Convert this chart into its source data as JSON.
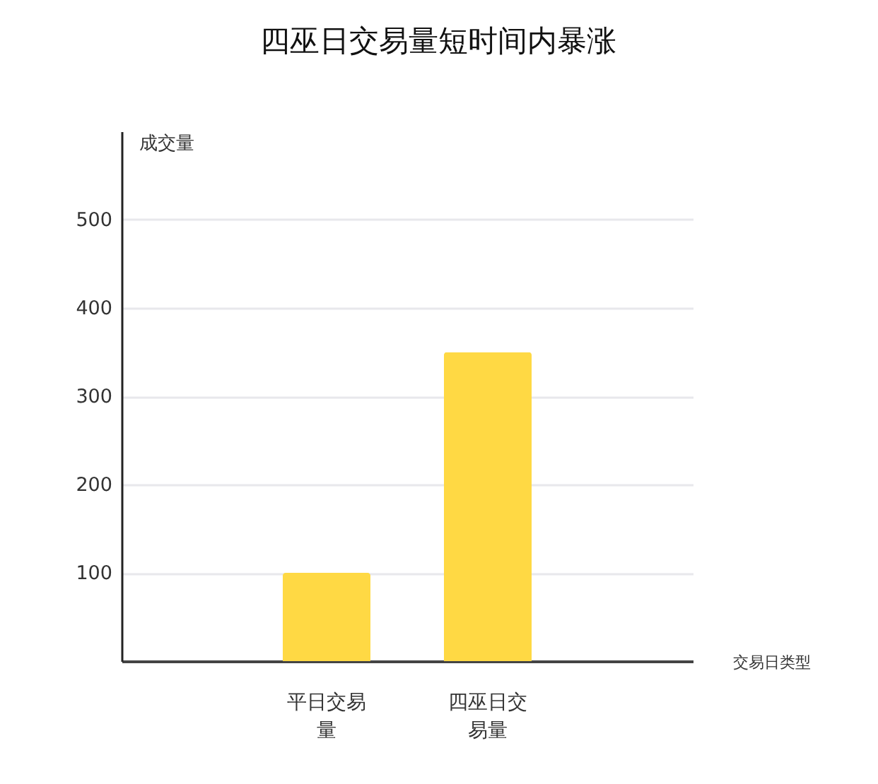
{
  "chart_data": {
    "type": "bar",
    "title": "四巫日交易量短时间内暴涨",
    "xlabel": "交易日类型",
    "ylabel": "成交量",
    "categories": [
      "平日交易量",
      "四巫日交易量"
    ],
    "values": [
      100,
      350
    ],
    "color": "#ffd944",
    "ylim": [
      0,
      600
    ],
    "yticks": [
      100,
      200,
      300,
      400,
      500
    ],
    "grid": "y"
  }
}
